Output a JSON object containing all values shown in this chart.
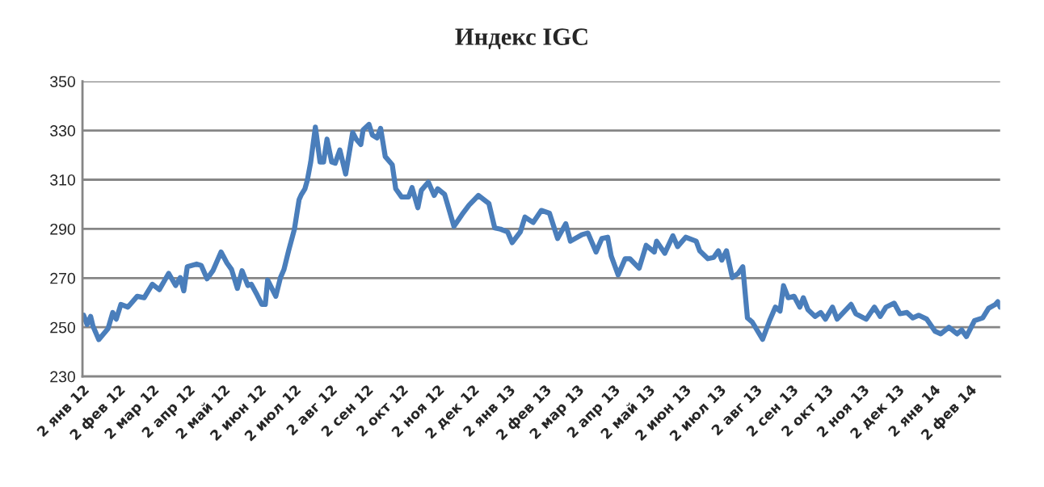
{
  "chart_data": {
    "type": "line",
    "title": "Индекс IGC",
    "xlim": [
      "2012-01-02",
      "2014-02-28"
    ],
    "ylim": [
      230,
      350
    ],
    "yticks": [
      230,
      250,
      270,
      290,
      310,
      330,
      350
    ],
    "xticks": [
      {
        "value": "2012-01-02",
        "label": "2 янв 12"
      },
      {
        "value": "2012-02-02",
        "label": "2 фев 12"
      },
      {
        "value": "2012-03-02",
        "label": "2 мар 12"
      },
      {
        "value": "2012-04-02",
        "label": "2 апр 12"
      },
      {
        "value": "2012-05-02",
        "label": "2 май 12"
      },
      {
        "value": "2012-06-02",
        "label": "2 июн 12"
      },
      {
        "value": "2012-07-02",
        "label": "2 июл 12"
      },
      {
        "value": "2012-08-02",
        "label": "2 авг 12"
      },
      {
        "value": "2012-09-02",
        "label": "2 сен 12"
      },
      {
        "value": "2012-10-02",
        "label": "2 окт 12"
      },
      {
        "value": "2012-11-02",
        "label": "2 ноя 12"
      },
      {
        "value": "2012-12-02",
        "label": "2 дек 12"
      },
      {
        "value": "2013-01-02",
        "label": "2 янв 13"
      },
      {
        "value": "2013-02-02",
        "label": "2 фев 13"
      },
      {
        "value": "2013-03-02",
        "label": "2 мар 13"
      },
      {
        "value": "2013-04-02",
        "label": "2 апр 13"
      },
      {
        "value": "2013-05-02",
        "label": "2 май 13"
      },
      {
        "value": "2013-06-02",
        "label": "2 июн 13"
      },
      {
        "value": "2013-07-02",
        "label": "2 июл 13"
      },
      {
        "value": "2013-08-02",
        "label": "2 авг 13"
      },
      {
        "value": "2013-09-02",
        "label": "2 сен 13"
      },
      {
        "value": "2013-10-02",
        "label": "2 окт 13"
      },
      {
        "value": "2013-11-02",
        "label": "2 ноя 13"
      },
      {
        "value": "2013-12-02",
        "label": "2 дек 13"
      },
      {
        "value": "2014-01-02",
        "label": "2 янв 14"
      },
      {
        "value": "2014-02-02",
        "label": "2 фев 14"
      }
    ],
    "grid": "y",
    "marker": "none",
    "line_style": "solid",
    "series": [
      {
        "color": "#4a7ebb",
        "x": [
          "2012-01-03",
          "2012-01-06",
          "2012-01-09",
          "2012-01-11",
          "2012-01-16",
          "2012-01-24",
          "2012-01-28",
          "2012-01-31",
          "2012-02-04",
          "2012-02-10",
          "2012-02-18",
          "2012-02-24",
          "2012-03-02",
          "2012-03-08",
          "2012-03-16",
          "2012-03-22",
          "2012-03-26",
          "2012-03-29",
          "2012-04-01",
          "2012-04-09",
          "2012-04-13",
          "2012-04-18",
          "2012-04-23",
          "2012-04-30",
          "2012-05-05",
          "2012-05-09",
          "2012-05-14",
          "2012-05-18",
          "2012-05-23",
          "2012-05-26",
          "2012-05-31",
          "2012-06-04",
          "2012-06-07",
          "2012-06-09",
          "2012-06-16",
          "2012-06-20",
          "2012-06-23",
          "2012-06-27",
          "2012-07-02",
          "2012-07-06",
          "2012-07-08",
          "2012-07-11",
          "2012-07-13",
          "2012-07-16",
          "2012-07-20",
          "2012-07-24",
          "2012-07-27",
          "2012-07-30",
          "2012-08-03",
          "2012-08-06",
          "2012-08-10",
          "2012-08-15",
          "2012-08-21",
          "2012-08-24",
          "2012-08-28",
          "2012-08-30",
          "2012-09-04",
          "2012-09-07",
          "2012-09-11",
          "2012-09-14",
          "2012-09-18",
          "2012-09-24",
          "2012-09-27",
          "2012-10-02",
          "2012-10-08",
          "2012-10-11",
          "2012-10-16",
          "2012-10-19",
          "2012-10-25",
          "2012-10-30",
          "2012-11-02",
          "2012-11-08",
          "2012-11-16",
          "2012-11-23",
          "2012-11-29",
          "2012-12-07",
          "2012-12-16",
          "2012-12-21",
          "2012-12-26",
          "2013-01-01",
          "2013-01-05",
          "2013-01-12",
          "2013-01-16",
          "2013-01-23",
          "2013-01-30",
          "2013-02-06",
          "2013-02-13",
          "2013-02-20",
          "2013-02-24",
          "2013-03-06",
          "2013-03-11",
          "2013-03-18",
          "2013-03-23",
          "2013-03-28",
          "2013-03-31",
          "2013-04-06",
          "2013-04-12",
          "2013-04-16",
          "2013-04-24",
          "2013-04-30",
          "2013-05-07",
          "2013-05-09",
          "2013-05-16",
          "2013-05-23",
          "2013-05-27",
          "2013-06-03",
          "2013-06-12",
          "2013-06-15",
          "2013-06-22",
          "2013-06-27",
          "2013-07-01",
          "2013-07-04",
          "2013-07-08",
          "2013-07-13",
          "2013-07-18",
          "2013-07-22",
          "2013-07-26",
          "2013-07-30",
          "2013-08-08",
          "2013-08-14",
          "2013-08-19",
          "2013-08-23",
          "2013-08-26",
          "2013-08-30",
          "2013-09-04",
          "2013-09-09",
          "2013-09-12",
          "2013-09-16",
          "2013-09-22",
          "2013-09-27",
          "2013-10-01",
          "2013-10-07",
          "2013-10-11",
          "2013-10-23",
          "2013-10-27",
          "2013-11-05",
          "2013-11-12",
          "2013-11-17",
          "2013-11-22",
          "2013-11-29",
          "2013-12-04",
          "2013-12-10",
          "2013-12-15",
          "2013-12-20",
          "2013-12-27",
          "2014-01-03",
          "2014-01-08",
          "2014-01-15",
          "2014-01-22",
          "2014-01-26",
          "2014-01-30",
          "2014-02-06",
          "2014-02-13",
          "2014-02-18",
          "2014-02-24",
          "2014-02-26",
          "2014-02-28"
        ],
        "values": [
          254.9,
          251.1,
          254.4,
          250.5,
          245,
          249.5,
          256,
          253.3,
          259.3,
          258.2,
          262.6,
          262,
          267.5,
          265.3,
          271.9,
          267,
          270.2,
          264.8,
          274.6,
          275.7,
          275.1,
          269.7,
          273,
          280.6,
          276.2,
          273.5,
          265.8,
          273,
          267,
          267.5,
          263.1,
          259.3,
          259.3,
          269.2,
          262.6,
          270.2,
          273.5,
          281.1,
          289.9,
          301.9,
          304,
          306.3,
          309.6,
          317.2,
          331.4,
          317.2,
          317.2,
          326.5,
          317.2,
          316.7,
          322.1,
          312.3,
          329.2,
          326.5,
          324.3,
          330.3,
          332.5,
          328.1,
          327,
          330.9,
          319.4,
          316.1,
          306.3,
          303,
          303,
          306.8,
          298.6,
          305.7,
          309,
          303.6,
          306.3,
          304,
          291,
          295.9,
          299.7,
          303.6,
          300.3,
          290.4,
          289.9,
          288.8,
          284.4,
          288.8,
          294.8,
          292.6,
          297.5,
          296.4,
          286.1,
          292.1,
          285,
          287.7,
          288.3,
          280.6,
          286.1,
          286.6,
          279,
          271.3,
          277.9,
          277.9,
          274,
          283.3,
          280.6,
          285,
          280.1,
          287.2,
          282.8,
          286.6,
          285,
          281.1,
          277.9,
          278.4,
          281.1,
          277.3,
          281.1,
          270.2,
          271.9,
          274.6,
          253.8,
          252.2,
          245.1,
          252.7,
          258.2,
          256.6,
          266.9,
          262,
          262.6,
          258.2,
          262,
          257.1,
          254.4,
          256,
          253.3,
          258.2,
          253.3,
          259.3,
          255.5,
          253.3,
          258.2,
          254.4,
          258.2,
          259.8,
          255.5,
          256,
          253.8,
          254.9,
          253.3,
          248.4,
          247.3,
          250,
          247.3,
          248.9,
          246.2,
          252.7,
          253.8,
          257.7,
          259.3,
          260.4,
          258.2
        ]
      }
    ]
  }
}
